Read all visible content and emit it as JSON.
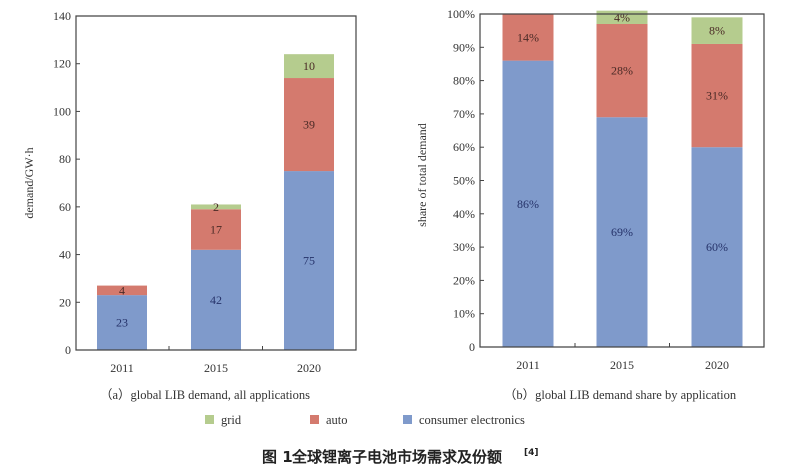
{
  "colors": {
    "grid": "#b5cc8e",
    "auto": "#d47a6e",
    "consumer_electronics": "#7f9acb"
  },
  "legend": [
    {
      "key": "grid",
      "label": "grid"
    },
    {
      "key": "auto",
      "label": "auto"
    },
    {
      "key": "consumer_electronics",
      "label": "consumer electronics"
    }
  ],
  "caption": {
    "fig": "图 1",
    "text": "全球锂离子电池市场需求及份额",
    "ref": "[4]"
  },
  "chart_data": [
    {
      "type": "bar",
      "stacked": true,
      "subtitle": "（a）global LIB demand, all applications",
      "ylabel": "demand/GW·h",
      "ylim": [
        0,
        140
      ],
      "yticks": [
        "0",
        "20",
        "40",
        "60",
        "80",
        "100",
        "120",
        "140"
      ],
      "categories": [
        "2011",
        "2015",
        "2020"
      ],
      "series": [
        {
          "name": "consumer electronics",
          "key": "consumer_electronics",
          "values": [
            23,
            42,
            75
          ],
          "labels": [
            "23",
            "42",
            "75"
          ]
        },
        {
          "name": "auto",
          "key": "auto",
          "values": [
            4,
            17,
            39
          ],
          "labels": [
            "4",
            "17",
            "39"
          ]
        },
        {
          "name": "grid",
          "key": "grid",
          "values": [
            0,
            2,
            10
          ],
          "labels": [
            "",
            "2",
            "10"
          ]
        }
      ]
    },
    {
      "type": "bar",
      "stacked": true,
      "subtitle": "（b）global LIB demand share by application",
      "ylabel": "share of total demand",
      "ylim": [
        0,
        100
      ],
      "yticks": [
        "0",
        "10%",
        "20%",
        "30%",
        "40%",
        "50%",
        "60%",
        "70%",
        "80%",
        "90%",
        "100%"
      ],
      "categories": [
        "2011",
        "2015",
        "2020"
      ],
      "series": [
        {
          "name": "consumer electronics",
          "key": "consumer_electronics",
          "values": [
            86,
            69,
            60
          ],
          "labels": [
            "86%",
            "69%",
            "60%"
          ]
        },
        {
          "name": "auto",
          "key": "auto",
          "values": [
            14,
            28,
            31
          ],
          "labels": [
            "14%",
            "28%",
            "31%"
          ]
        },
        {
          "name": "grid",
          "key": "grid",
          "values": [
            0,
            4,
            8
          ],
          "labels": [
            "",
            "4%",
            "8%"
          ]
        }
      ]
    }
  ]
}
